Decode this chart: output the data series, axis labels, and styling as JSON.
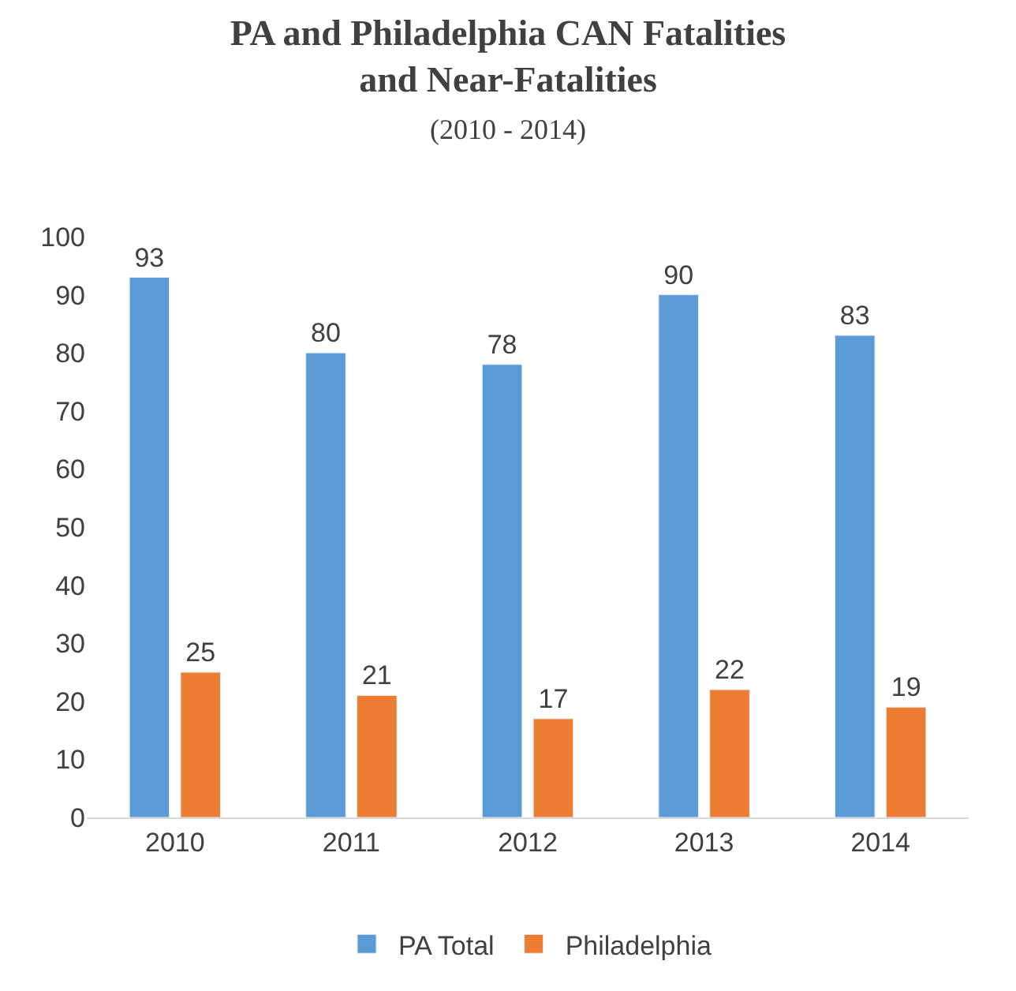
{
  "chart_data": {
    "type": "bar",
    "title": "PA and Philadelphia CAN Fatalities and Near-Fatalities",
    "subtitle": "(2010 - 2014)",
    "categories": [
      "2010",
      "2011",
      "2012",
      "2013",
      "2014"
    ],
    "series": [
      {
        "name": "PA Total",
        "color": "#5b9bd5",
        "values": [
          93,
          80,
          78,
          90,
          83
        ]
      },
      {
        "name": "Philadelphia",
        "color": "#ed7d31",
        "values": [
          25,
          21,
          17,
          22,
          19
        ]
      }
    ],
    "ylim": [
      0,
      100
    ],
    "yticks": [
      0,
      10,
      20,
      30,
      40,
      50,
      60,
      70,
      80,
      90,
      100
    ],
    "grid": false,
    "legend": "bottom",
    "data_labels": true
  }
}
